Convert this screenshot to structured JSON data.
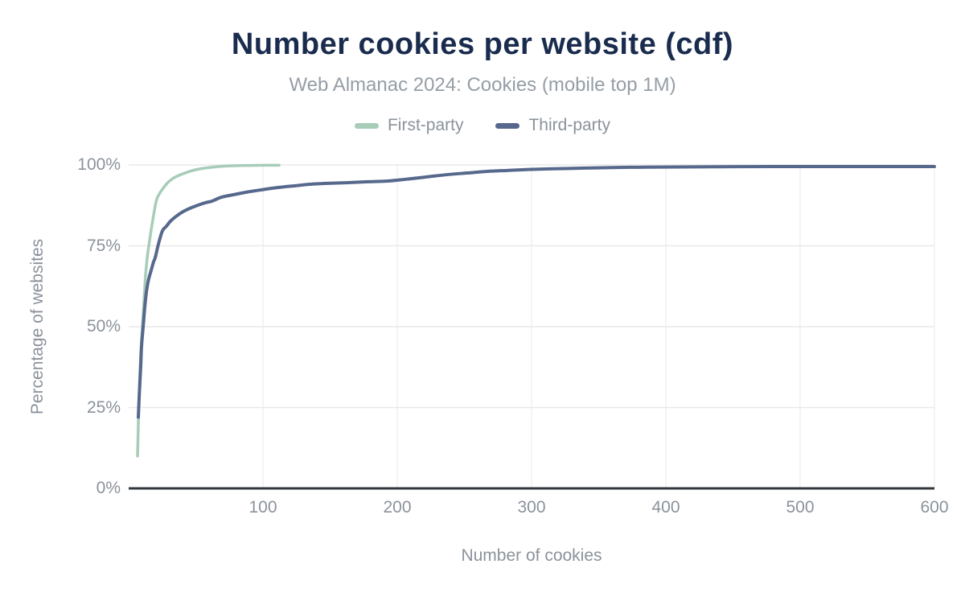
{
  "theme": {
    "background": "#ffffff",
    "title_color": "#1a2c4e",
    "subtitle_color": "#969da6",
    "text_color": "#8b929b",
    "axis_line_color": "#32373c",
    "h_grid_color": "#e9e9e9",
    "v_grid_color": "#f1f1f1"
  },
  "chart_data": {
    "type": "line",
    "title": "Number cookies per website (cdf)",
    "subtitle": "Web Almanac 2024: Cookies (mobile top 1M)",
    "xlabel": "Number of cookies",
    "ylabel": "Percentage of websites",
    "xlim": [
      0,
      600
    ],
    "ylim": [
      0,
      100
    ],
    "x_ticks": [
      100,
      200,
      300,
      400,
      500,
      600
    ],
    "x_tick_labels": [
      "100",
      "200",
      "300",
      "400",
      "500",
      "600"
    ],
    "y_ticks": [
      0,
      25,
      50,
      75,
      100
    ],
    "y_tick_labels": [
      "0%",
      "25%",
      "50%",
      "75%",
      "100%"
    ],
    "grid": true,
    "legend_position": "top",
    "series": [
      {
        "name": "First-party",
        "color": "#a7ccb8",
        "line_width": 3.5,
        "points": [
          [
            6.6,
            10
          ],
          [
            7.2,
            20
          ],
          [
            7.8,
            29
          ],
          [
            8.8,
            40
          ],
          [
            10.2,
            50
          ],
          [
            11.4,
            58
          ],
          [
            12.6,
            66
          ],
          [
            14,
            72
          ],
          [
            15,
            75
          ],
          [
            16.8,
            80
          ],
          [
            19.2,
            86
          ],
          [
            21,
            89.5
          ],
          [
            23.5,
            91.5
          ],
          [
            26,
            93
          ],
          [
            29,
            94.5
          ],
          [
            32.5,
            95.7
          ],
          [
            36,
            96.5
          ],
          [
            40,
            97.2
          ],
          [
            46,
            98.1
          ],
          [
            52,
            98.7
          ],
          [
            60,
            99.2
          ],
          [
            70,
            99.6
          ],
          [
            84,
            99.8
          ],
          [
            100,
            99.9
          ],
          [
            112,
            99.9
          ]
        ]
      },
      {
        "name": "Third-party",
        "color": "#56688c",
        "line_width": 4,
        "points": [
          [
            7.2,
            22
          ],
          [
            7.8,
            28
          ],
          [
            8.4,
            33
          ],
          [
            9,
            38
          ],
          [
            9.6,
            44
          ],
          [
            10.8,
            50
          ],
          [
            12,
            56
          ],
          [
            13.3,
            61
          ],
          [
            14.8,
            64.5
          ],
          [
            16.8,
            67.5
          ],
          [
            18.5,
            70
          ],
          [
            19.8,
            71.4
          ],
          [
            22.2,
            75.6
          ],
          [
            25.1,
            79.6
          ],
          [
            28,
            81
          ],
          [
            31.1,
            82.6
          ],
          [
            35,
            84
          ],
          [
            40.7,
            85.6
          ],
          [
            48,
            87
          ],
          [
            56.9,
            88.3
          ],
          [
            62,
            88.8
          ],
          [
            68.9,
            90
          ],
          [
            78,
            90.8
          ],
          [
            88,
            91.6
          ],
          [
            94,
            92
          ],
          [
            105,
            92.7
          ],
          [
            115,
            93.2
          ],
          [
            125,
            93.6
          ],
          [
            134,
            94
          ],
          [
            148,
            94.3
          ],
          [
            162,
            94.5
          ],
          [
            178,
            94.8
          ],
          [
            192,
            95
          ],
          [
            207,
            95.6
          ],
          [
            222,
            96.3
          ],
          [
            237,
            97
          ],
          [
            252,
            97.5
          ],
          [
            267,
            98
          ],
          [
            282,
            98.3
          ],
          [
            298,
            98.6
          ],
          [
            313,
            98.8
          ],
          [
            337,
            99
          ],
          [
            360,
            99.2
          ],
          [
            380,
            99.3
          ],
          [
            400,
            99.35
          ],
          [
            440,
            99.45
          ],
          [
            480,
            99.5
          ],
          [
            540,
            99.5
          ],
          [
            600,
            99.5
          ]
        ]
      }
    ]
  }
}
